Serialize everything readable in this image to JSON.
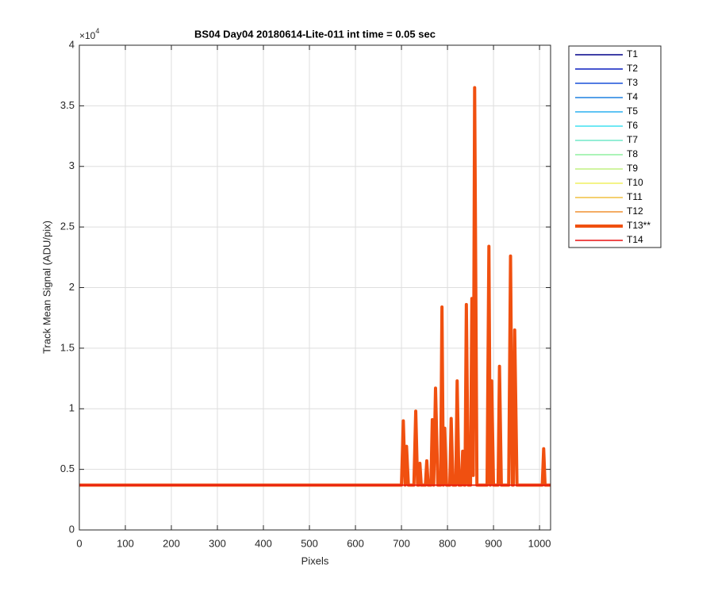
{
  "chart_data": {
    "type": "line",
    "title": "BS04 Day04 20180614-Lite-011 int time = 0.05 sec",
    "x_label": "Pixels",
    "y_label": "Track Mean Signal (ADU/pix)",
    "y_multiplier": {
      "base": "×10",
      "power": "4"
    },
    "xlim": [
      0,
      1024
    ],
    "xticks": [
      0,
      100,
      200,
      300,
      400,
      500,
      600,
      700,
      800,
      900,
      1000
    ],
    "ylim": [
      0,
      4
    ],
    "yticks": [
      0,
      0.5,
      1,
      1.5,
      2,
      2.5,
      3,
      3.5,
      4
    ],
    "grid": true,
    "legend": "outside-right",
    "series": [
      {
        "name": "T1",
        "color": "#00008a",
        "linewidth": 1.5,
        "x": [
          0,
          1024
        ],
        "values": [
          0.37,
          0.37
        ]
      },
      {
        "name": "T2",
        "color": "#0a1fbf",
        "linewidth": 1.5,
        "x": [
          0,
          1024
        ],
        "values": [
          0.37,
          0.37
        ]
      },
      {
        "name": "T3",
        "color": "#1a50d8",
        "linewidth": 1.5,
        "x": [
          0,
          1024
        ],
        "values": [
          0.37,
          0.37
        ]
      },
      {
        "name": "T4",
        "color": "#1f80e0",
        "linewidth": 1.5,
        "x": [
          0,
          1024
        ],
        "values": [
          0.37,
          0.37
        ]
      },
      {
        "name": "T5",
        "color": "#2cb0f0",
        "linewidth": 1.5,
        "x": [
          0,
          1024
        ],
        "values": [
          0.37,
          0.37
        ]
      },
      {
        "name": "T6",
        "color": "#40e0f0",
        "linewidth": 1.5,
        "x": [
          0,
          1024
        ],
        "values": [
          0.37,
          0.37
        ]
      },
      {
        "name": "T7",
        "color": "#70e8c8",
        "linewidth": 1.5,
        "x": [
          0,
          1024
        ],
        "values": [
          0.37,
          0.37
        ]
      },
      {
        "name": "T8",
        "color": "#90f0a0",
        "linewidth": 1.5,
        "x": [
          0,
          1024
        ],
        "values": [
          0.37,
          0.37
        ]
      },
      {
        "name": "T9",
        "color": "#c0f080",
        "linewidth": 1.5,
        "x": [
          0,
          1024
        ],
        "values": [
          0.37,
          0.37
        ]
      },
      {
        "name": "T10",
        "color": "#f0f060",
        "linewidth": 1.5,
        "x": [
          0,
          1024
        ],
        "values": [
          0.37,
          0.37
        ]
      },
      {
        "name": "T11",
        "color": "#f0c040",
        "linewidth": 1.5,
        "x": [
          0,
          1024
        ],
        "values": [
          0.37,
          0.37
        ]
      },
      {
        "name": "T12",
        "color": "#f09030",
        "linewidth": 1.5,
        "x": [
          0,
          1024
        ],
        "values": [
          0.37,
          0.37
        ]
      },
      {
        "name": "T13**",
        "color": "#f05010",
        "linewidth": 4,
        "x": [
          0,
          700,
          704,
          708,
          711,
          715,
          727,
          731,
          735,
          738,
          740,
          743,
          752,
          755,
          758,
          764,
          767,
          770,
          774,
          779,
          785,
          788,
          791,
          794,
          798,
          805,
          808,
          812,
          818,
          821,
          825,
          830,
          833,
          836,
          838,
          841,
          845,
          850,
          853,
          856,
          859,
          864,
          886,
          890,
          893,
          896,
          900,
          910,
          913,
          917,
          933,
          937,
          941,
          943,
          946,
          951,
          1006,
          1009,
          1012,
          1024
        ],
        "values": [
          0.37,
          0.37,
          0.9,
          0.37,
          0.69,
          0.37,
          0.37,
          0.98,
          0.37,
          0.37,
          0.55,
          0.37,
          0.37,
          0.57,
          0.37,
          0.37,
          0.91,
          0.37,
          1.17,
          0.37,
          0.37,
          1.84,
          0.37,
          0.84,
          0.37,
          0.37,
          0.92,
          0.37,
          0.37,
          1.23,
          0.37,
          0.37,
          0.65,
          0.37,
          0.37,
          1.86,
          0.37,
          0.37,
          1.91,
          0.45,
          3.65,
          0.37,
          0.37,
          2.34,
          0.37,
          1.23,
          0.37,
          0.37,
          1.35,
          0.37,
          0.37,
          2.26,
          0.37,
          0.37,
          1.65,
          0.37,
          0.37,
          0.67,
          0.37,
          0.37
        ]
      },
      {
        "name": "T14",
        "color": "#e81010",
        "linewidth": 1.5,
        "x": [
          0,
          1024
        ],
        "values": [
          0.37,
          0.37
        ]
      }
    ]
  }
}
